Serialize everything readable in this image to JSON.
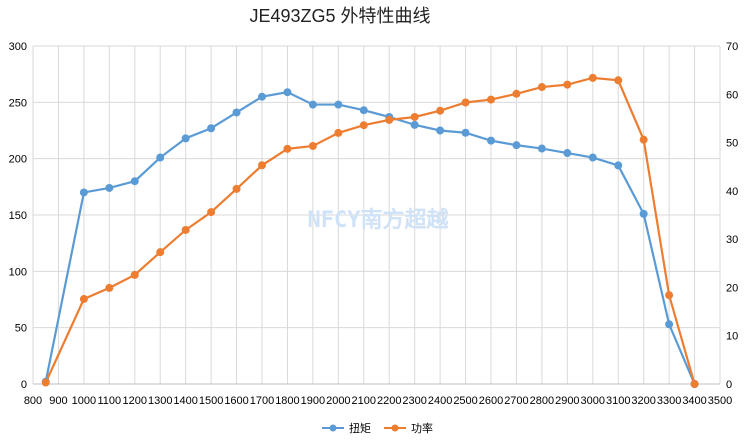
{
  "chart_data": {
    "type": "line",
    "title": "JE493ZG5 外特性曲线",
    "watermark": "NFCY南方超越",
    "x": [
      850,
      1000,
      1100,
      1200,
      1300,
      1400,
      1500,
      1600,
      1700,
      1800,
      1900,
      2000,
      2100,
      2200,
      2300,
      2400,
      2500,
      2600,
      2700,
      2800,
      2900,
      3000,
      3100,
      3200,
      3300,
      3400
    ],
    "xlim": [
      800,
      3500
    ],
    "xticks": [
      800,
      900,
      1000,
      1100,
      1200,
      1300,
      1400,
      1500,
      1600,
      1700,
      1800,
      1900,
      2000,
      2100,
      2200,
      2300,
      2400,
      2500,
      2600,
      2700,
      2800,
      2900,
      3000,
      3100,
      3200,
      3300,
      3400,
      3500
    ],
    "ylim_left": [
      0,
      300
    ],
    "yticks_left": [
      0,
      50,
      100,
      150,
      200,
      250,
      300
    ],
    "ylim_right": [
      0,
      70
    ],
    "yticks_right": [
      0,
      10,
      20,
      30,
      40,
      50,
      60,
      70
    ],
    "grid": true,
    "legend_position": "bottom",
    "series": [
      {
        "name": "扭矩",
        "axis": "left",
        "color": "#5b9bd5",
        "values": [
          2,
          170,
          174,
          180,
          201,
          218,
          227,
          241,
          255,
          259,
          248,
          248,
          243,
          237,
          230,
          225,
          223,
          216,
          212,
          209,
          205,
          201,
          194,
          151,
          53,
          0
        ]
      },
      {
        "name": "功率",
        "axis": "right",
        "color": "#ed7d31",
        "values": [
          0.3,
          17.6,
          19.9,
          22.6,
          27.3,
          31.9,
          35.6,
          40.4,
          45.3,
          48.7,
          49.3,
          52.0,
          53.6,
          54.7,
          55.3,
          56.6,
          58.3,
          58.9,
          60.1,
          61.5,
          62.0,
          63.4,
          62.9,
          50.6,
          18.4,
          0
        ]
      }
    ]
  }
}
